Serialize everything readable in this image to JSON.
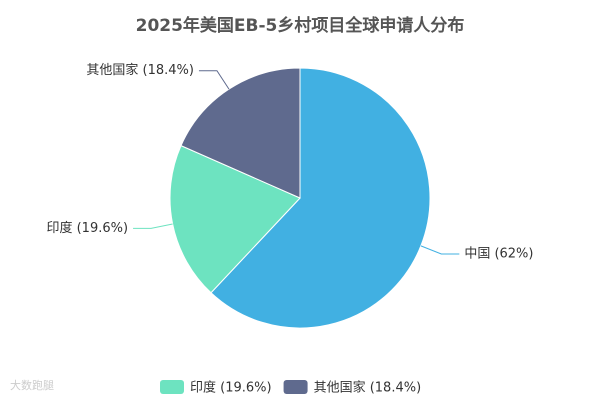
{
  "chart_data": {
    "type": "pie",
    "title": "2025年美国EB-5乡村项目全球申请人分布",
    "categories": [
      "中国",
      "印度",
      "其他国家"
    ],
    "values": [
      62,
      19.6,
      18.4
    ],
    "value_labels": [
      "中国 (62%)",
      "印度 (19.6%)",
      "其他国家 (18.4%)"
    ],
    "colors": [
      "#41b0e2",
      "#6de3c0",
      "#5f6a8e"
    ],
    "watermark": "大数跑腿"
  }
}
